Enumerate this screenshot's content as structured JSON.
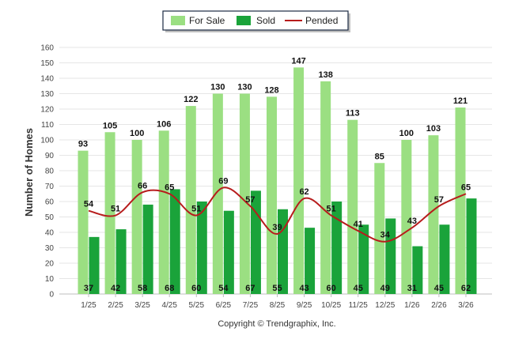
{
  "chart_data": {
    "type": "bar",
    "title": "",
    "xlabel": "",
    "ylabel": "Number of Homes",
    "ylim": [
      0,
      160
    ],
    "yticks": [
      0,
      10,
      20,
      30,
      40,
      50,
      60,
      70,
      80,
      90,
      100,
      110,
      120,
      130,
      140,
      150,
      160
    ],
    "grid": true,
    "legend_position": "top-center",
    "categories": [
      "1/25",
      "2/25",
      "3/25",
      "4/25",
      "5/25",
      "6/25",
      "7/25",
      "8/25",
      "9/25",
      "10/25",
      "11/25",
      "12/25",
      "1/26",
      "2/26",
      "3/26"
    ],
    "series": [
      {
        "name": "For Sale",
        "type": "bar",
        "color": "#9bdf82",
        "values": [
          93,
          105,
          100,
          106,
          122,
          130,
          130,
          128,
          147,
          138,
          113,
          85,
          100,
          103,
          121
        ]
      },
      {
        "name": "Sold",
        "type": "bar",
        "color": "#1aa33a",
        "values": [
          37,
          42,
          58,
          68,
          60,
          54,
          67,
          55,
          43,
          60,
          45,
          49,
          31,
          45,
          62
        ]
      },
      {
        "name": "Pended",
        "type": "line",
        "color": "#b71c1c",
        "values": [
          54,
          51,
          66,
          65,
          51,
          69,
          57,
          39,
          62,
          51,
          41,
          34,
          43,
          57,
          65
        ]
      }
    ]
  },
  "footer": {
    "copyright": "Copyright © Trendgraphix, Inc."
  }
}
